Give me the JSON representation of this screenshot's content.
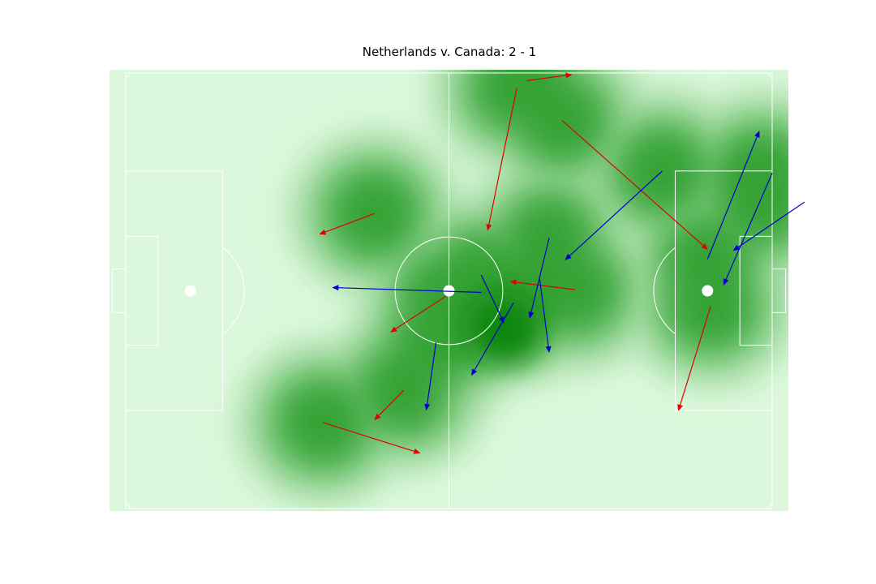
{
  "chart_data": {
    "type": "scatter",
    "title": "Netherlands v. Canada: 2 - 1",
    "xlim": [
      0,
      120
    ],
    "ylim": [
      0,
      80
    ],
    "grid": false,
    "colors": {
      "pitch": "#dcf8dc",
      "lines": "#ffffff",
      "density_levels": [
        "#dcf8dc",
        "#c3ebc3",
        "#aadfaa",
        "#94d494",
        "#7cc87c",
        "#64bb64",
        "#4caf4c",
        "#35a235",
        "#0c870c"
      ],
      "series_red": "#e00000",
      "series_blue": "#0000cc"
    },
    "series": [
      {
        "color": "#e00000",
        "arrows": [
          [
            74.4,
            78.6,
            82.8,
            79.7
          ],
          [
            72.6,
            77.2,
            67.2,
            51.1
          ],
          [
            81.0,
            71.3,
            108.0,
            47.6
          ],
          [
            46.2,
            54.2,
            36.0,
            50.4
          ],
          [
            83.4,
            40.2,
            71.4,
            41.7
          ],
          [
            59.4,
            39.0,
            49.2,
            32.4
          ],
          [
            108.6,
            37.2,
            102.6,
            18.0
          ],
          [
            51.6,
            21.7,
            46.2,
            16.3
          ],
          [
            36.6,
            15.8,
            54.6,
            10.2
          ]
        ]
      },
      {
        "color": "#0000cc",
        "arrows": [
          [
            99.6,
            62.0,
            81.6,
            45.7
          ],
          [
            108.0,
            45.8,
            117.6,
            69.3
          ],
          [
            126.0,
            56.3,
            112.8,
            47.4
          ],
          [
            120.0,
            61.6,
            111.0,
            41.1
          ],
          [
            78.6,
            49.7,
            75.0,
            35.0
          ],
          [
            66.0,
            39.7,
            38.4,
            40.6
          ],
          [
            66.0,
            42.9,
            70.2,
            34.1
          ],
          [
            76.8,
            42.5,
            78.6,
            28.7
          ],
          [
            72.0,
            37.8,
            64.2,
            24.5
          ],
          [
            57.6,
            30.5,
            55.8,
            18.1
          ]
        ]
      }
    ]
  }
}
